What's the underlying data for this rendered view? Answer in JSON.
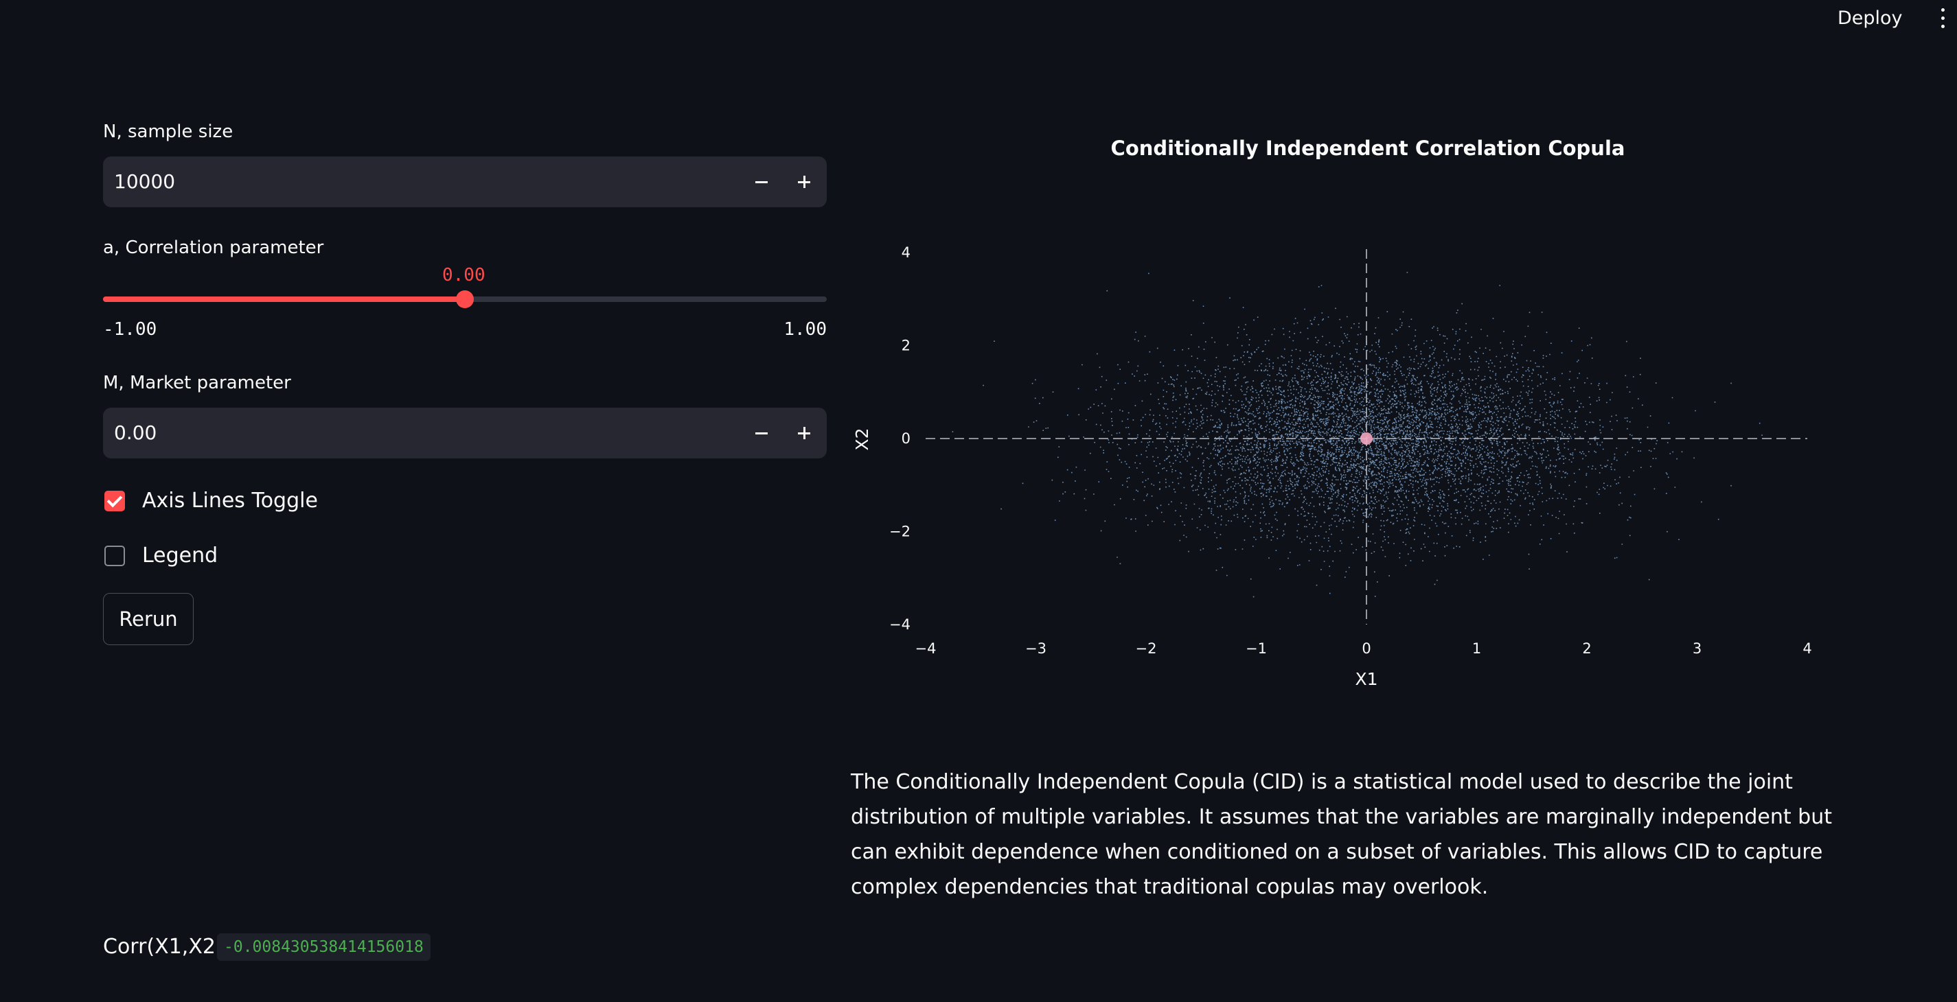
{
  "header": {
    "deploy_label": "Deploy"
  },
  "controls": {
    "sample_size": {
      "label": "N, sample size",
      "value": "10000"
    },
    "correlation": {
      "label": "a, Correlation parameter",
      "value_label": "0.00",
      "value": 0.0,
      "min_label": "-1.00",
      "max_label": "1.00",
      "min": -1.0,
      "max": 1.0
    },
    "market": {
      "label": "M, Market parameter",
      "value": "0.00"
    },
    "axis_lines_toggle": {
      "label": "Axis Lines Toggle",
      "checked": true
    },
    "legend_toggle": {
      "label": "Legend",
      "checked": false
    },
    "rerun_label": "Rerun"
  },
  "result": {
    "corr_label": "Corr(X1,X2):",
    "corr_value": "-0.008430538414156018"
  },
  "chart_data": {
    "type": "scatter",
    "title": "Conditionally Independent Correlation Copula",
    "xlabel": "X1",
    "ylabel": "X2",
    "xlim": [
      -4,
      4
    ],
    "ylim": [
      -4,
      4
    ],
    "xticks": [
      -4,
      -3,
      -2,
      -1,
      0,
      1,
      2,
      3,
      4
    ],
    "yticks": [
      -4,
      -2,
      0,
      2,
      4
    ],
    "grid": false,
    "axis_lines": true,
    "legend": false,
    "series": [
      {
        "n": 10000,
        "distribution": "independent standard normal",
        "mean": [
          0,
          0
        ],
        "std": [
          1,
          1
        ],
        "correlation": -0.0084,
        "color": "#8fb8e8"
      }
    ],
    "market_point": {
      "x": 0,
      "y": 0,
      "color": "#f4a6c0"
    }
  },
  "description": "The Conditionally Independent Copula (CID) is a statistical model used to describe the joint distribution of multiple variables. It assumes that the variables are marginally independent but can exhibit dependence when conditioned on a subset of variables. This allows CID to capture complex dependencies that traditional copulas may overlook.",
  "colors": {
    "background": "#0e1117",
    "accent": "#ff4b4b",
    "input_bg": "#262730",
    "code_green": "#4caf50",
    "points": "#8fb8e8"
  }
}
